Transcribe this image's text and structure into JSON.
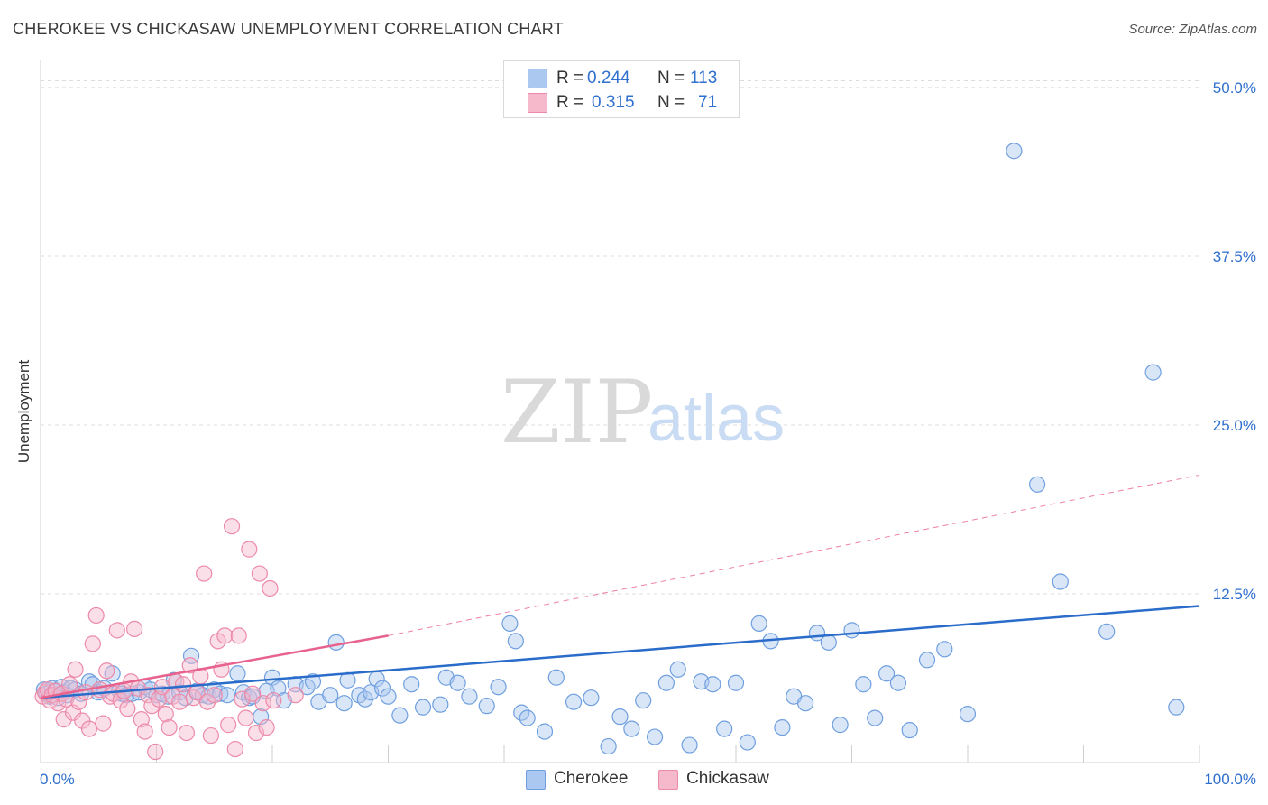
{
  "title": "CHEROKEE VS CHICKASAW UNEMPLOYMENT CORRELATION CHART",
  "source": "Source: ZipAtlas.com",
  "watermark": {
    "zip": "ZIP",
    "atlas": "atlas"
  },
  "stats": [
    {
      "r_label": "R =",
      "r_value": "0.244",
      "n_label": "N =",
      "n_value": "113"
    },
    {
      "r_label": "R =",
      "r_value": "0.315",
      "n_label": "N =",
      "n_value": "71"
    }
  ],
  "legend": {
    "cherokee": "Cherokee",
    "chickasaw": "Chickasaw"
  },
  "colors": {
    "cherokee_fill": "#aac8f0",
    "cherokee_stroke": "#6f9fdf",
    "cherokee_line": "#2a6cc9",
    "chickasaw_fill": "#f6b8cb",
    "chickasaw_stroke": "#ec8aa9",
    "chickasaw_line": "#e8628e",
    "tick_label": "#2f6fcd",
    "grid": "#dcdcdc"
  },
  "chart_data": {
    "type": "scatter",
    "title": "CHEROKEE VS CHICKASAW UNEMPLOYMENT CORRELATION CHART",
    "xlabel": "",
    "ylabel": "Unemployment",
    "xlim": [
      0,
      100
    ],
    "ylim": [
      0,
      52
    ],
    "x_tick_labels": [
      {
        "value": 0,
        "label": "0.0%"
      },
      {
        "value": 100,
        "label": "100.0%"
      }
    ],
    "y_ticks": [
      {
        "value": 12.5,
        "label": "12.5%"
      },
      {
        "value": 25,
        "label": "25.0%"
      },
      {
        "value": 37.5,
        "label": "37.5%"
      },
      {
        "value": 50,
        "label": "50.0%"
      }
    ],
    "series": [
      {
        "name": "Cherokee",
        "r": 0.244,
        "n": 113,
        "trend": {
          "x": [
            0,
            100
          ],
          "y": [
            4.8,
            11.6
          ],
          "dashed_from": null
        },
        "points": [
          [
            0.3,
            5.4
          ],
          [
            0.5,
            5.1
          ],
          [
            0.8,
            4.9
          ],
          [
            1.0,
            5.5
          ],
          [
            1.2,
            5.3
          ],
          [
            1.5,
            4.8
          ],
          [
            1.8,
            5.6
          ],
          [
            2.0,
            5.2
          ],
          [
            2.3,
            5.0
          ],
          [
            2.6,
            5.5
          ],
          [
            3.0,
            5.4
          ],
          [
            3.5,
            5.1
          ],
          [
            4.2,
            6.0
          ],
          [
            4.5,
            5.8
          ],
          [
            5.0,
            5.2
          ],
          [
            5.5,
            5.5
          ],
          [
            6.2,
            6.6
          ],
          [
            6.8,
            5.3
          ],
          [
            7.0,
            5.1
          ],
          [
            7.4,
            5.0
          ],
          [
            7.9,
            5.1
          ],
          [
            8.5,
            5.2
          ],
          [
            9.0,
            5.6
          ],
          [
            9.5,
            5.4
          ],
          [
            10.0,
            5.0
          ],
          [
            10.5,
            5.1
          ],
          [
            11.0,
            4.9
          ],
          [
            11.5,
            6.1
          ],
          [
            12.0,
            5.2
          ],
          [
            12.5,
            4.8
          ],
          [
            13.0,
            7.9
          ],
          [
            13.5,
            5.3
          ],
          [
            14.0,
            5.0
          ],
          [
            14.5,
            4.9
          ],
          [
            15.0,
            5.4
          ],
          [
            15.5,
            5.1
          ],
          [
            16.1,
            5.0
          ],
          [
            17.0,
            6.6
          ],
          [
            17.5,
            5.2
          ],
          [
            18.0,
            4.8
          ],
          [
            18.3,
            4.9
          ],
          [
            19.0,
            3.4
          ],
          [
            19.5,
            5.3
          ],
          [
            20.0,
            6.3
          ],
          [
            20.5,
            5.5
          ],
          [
            21.0,
            4.6
          ],
          [
            22.0,
            5.8
          ],
          [
            23.0,
            5.6
          ],
          [
            23.5,
            6.0
          ],
          [
            24.0,
            4.5
          ],
          [
            25.0,
            5.0
          ],
          [
            25.5,
            8.9
          ],
          [
            26.2,
            4.4
          ],
          [
            26.5,
            6.1
          ],
          [
            27.5,
            5.0
          ],
          [
            28.0,
            4.7
          ],
          [
            28.5,
            5.2
          ],
          [
            29.0,
            6.2
          ],
          [
            29.5,
            5.5
          ],
          [
            30.0,
            4.9
          ],
          [
            31.0,
            3.5
          ],
          [
            32.0,
            5.8
          ],
          [
            33.0,
            4.1
          ],
          [
            34.5,
            4.3
          ],
          [
            35.0,
            6.3
          ],
          [
            36.0,
            5.9
          ],
          [
            37.0,
            4.9
          ],
          [
            38.5,
            4.2
          ],
          [
            39.5,
            5.6
          ],
          [
            40.5,
            10.3
          ],
          [
            41.0,
            9.0
          ],
          [
            41.5,
            3.7
          ],
          [
            42.0,
            3.3
          ],
          [
            43.5,
            2.3
          ],
          [
            44.5,
            6.3
          ],
          [
            46.0,
            4.5
          ],
          [
            47.5,
            4.8
          ],
          [
            49.0,
            1.2
          ],
          [
            50.0,
            3.4
          ],
          [
            51.0,
            2.5
          ],
          [
            52.0,
            4.6
          ],
          [
            53.0,
            1.9
          ],
          [
            54.0,
            5.9
          ],
          [
            55.0,
            6.9
          ],
          [
            56.0,
            1.3
          ],
          [
            57.0,
            6.0
          ],
          [
            58.0,
            5.8
          ],
          [
            59.0,
            2.5
          ],
          [
            60.0,
            5.9
          ],
          [
            61.0,
            1.5
          ],
          [
            62.0,
            10.3
          ],
          [
            63.0,
            9.0
          ],
          [
            64.0,
            2.6
          ],
          [
            65.0,
            4.9
          ],
          [
            66.0,
            4.4
          ],
          [
            67.0,
            9.6
          ],
          [
            68.0,
            8.9
          ],
          [
            69.0,
            2.8
          ],
          [
            70.0,
            9.8
          ],
          [
            71.0,
            5.8
          ],
          [
            72.0,
            3.3
          ],
          [
            73.0,
            6.6
          ],
          [
            74.0,
            5.9
          ],
          [
            75.0,
            2.4
          ],
          [
            76.5,
            7.6
          ],
          [
            78.0,
            8.4
          ],
          [
            80.0,
            3.6
          ],
          [
            84.0,
            45.3
          ],
          [
            86.0,
            20.6
          ],
          [
            88.0,
            13.4
          ],
          [
            92.0,
            9.7
          ],
          [
            96.0,
            28.9
          ],
          [
            98.0,
            4.1
          ]
        ]
      },
      {
        "name": "Chickasaw",
        "r": 0.315,
        "n": 71,
        "trend": {
          "x": [
            0,
            30
          ],
          "y": [
            4.8,
            9.4
          ],
          "dashed_to": [
            100,
            21.3
          ]
        },
        "points": [
          [
            0.2,
            4.9
          ],
          [
            0.4,
            5.2
          ],
          [
            0.6,
            5.4
          ],
          [
            0.8,
            4.6
          ],
          [
            1.0,
            5.0
          ],
          [
            1.3,
            5.3
          ],
          [
            1.5,
            4.4
          ],
          [
            1.8,
            5.1
          ],
          [
            2.0,
            3.2
          ],
          [
            2.2,
            4.7
          ],
          [
            2.5,
            5.8
          ],
          [
            2.8,
            3.7
          ],
          [
            3.0,
            6.9
          ],
          [
            3.3,
            4.5
          ],
          [
            3.6,
            3.1
          ],
          [
            3.9,
            5.2
          ],
          [
            4.2,
            2.5
          ],
          [
            4.5,
            8.8
          ],
          [
            4.8,
            10.9
          ],
          [
            5.1,
            5.4
          ],
          [
            5.4,
            2.9
          ],
          [
            5.7,
            6.8
          ],
          [
            6.0,
            4.9
          ],
          [
            6.3,
            5.1
          ],
          [
            6.6,
            9.8
          ],
          [
            6.9,
            4.6
          ],
          [
            7.2,
            5.3
          ],
          [
            7.5,
            4.0
          ],
          [
            7.8,
            6.0
          ],
          [
            8.1,
            9.9
          ],
          [
            8.4,
            5.5
          ],
          [
            8.7,
            3.2
          ],
          [
            9.0,
            2.3
          ],
          [
            9.3,
            5.0
          ],
          [
            9.6,
            4.2
          ],
          [
            9.9,
            0.8
          ],
          [
            10.2,
            4.7
          ],
          [
            10.5,
            5.6
          ],
          [
            10.8,
            3.6
          ],
          [
            11.1,
            2.6
          ],
          [
            11.4,
            4.9
          ],
          [
            11.7,
            6.0
          ],
          [
            12.0,
            4.5
          ],
          [
            12.3,
            5.8
          ],
          [
            12.6,
            2.2
          ],
          [
            12.9,
            7.2
          ],
          [
            13.2,
            4.8
          ],
          [
            13.5,
            5.2
          ],
          [
            13.8,
            6.4
          ],
          [
            14.1,
            14.0
          ],
          [
            14.4,
            4.5
          ],
          [
            14.7,
            2.0
          ],
          [
            15.0,
            5.0
          ],
          [
            15.3,
            9.0
          ],
          [
            15.6,
            6.9
          ],
          [
            15.9,
            9.4
          ],
          [
            16.2,
            2.8
          ],
          [
            16.5,
            17.5
          ],
          [
            16.8,
            1.0
          ],
          [
            17.1,
            9.4
          ],
          [
            17.4,
            4.7
          ],
          [
            17.7,
            3.3
          ],
          [
            18.0,
            15.8
          ],
          [
            18.3,
            5.1
          ],
          [
            18.6,
            2.2
          ],
          [
            18.9,
            14.0
          ],
          [
            19.2,
            4.4
          ],
          [
            19.5,
            2.6
          ],
          [
            19.8,
            12.9
          ],
          [
            20.1,
            4.6
          ],
          [
            22.0,
            5.0
          ]
        ]
      }
    ]
  }
}
